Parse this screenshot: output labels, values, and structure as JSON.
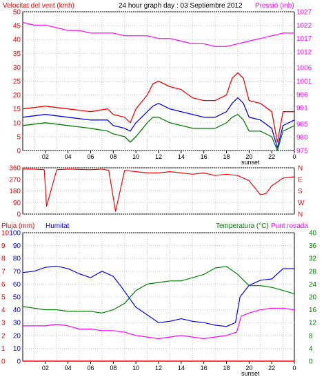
{
  "chart_data": [
    {
      "type": "line",
      "title": "24 hour graph day : 03 Septiembre 2012",
      "ylabel_left": "Velocitat del vent (kmh)",
      "ylabel_right": "Pressió (mb)",
      "xlabel": "",
      "sunset_label": "sunset",
      "x_ticks": [
        "02",
        "04",
        "06",
        "08",
        "10",
        "12",
        "14",
        "16",
        "18",
        "20",
        "22",
        "0"
      ],
      "ylim": [
        0,
        50
      ],
      "y_ticks": [
        0,
        5,
        10,
        15,
        20,
        25,
        30,
        35,
        40,
        45,
        50
      ],
      "y2lim": [
        975,
        1027
      ],
      "y2_ticks": [
        975,
        980,
        985,
        991,
        996,
        1001,
        1006,
        1012,
        1017,
        1022,
        1027
      ],
      "colors": {
        "gust": "#ff0000",
        "average": "#0000ff",
        "speed": "#008000",
        "pressure": "#ff00ff",
        "axis_left": "#ff0000",
        "axis_right": "#ff00ff"
      },
      "series": [
        {
          "name": "",
          "color": "#ff0000",
          "x": [
            0,
            2,
            4,
            6,
            7.5,
            8,
            9,
            9.5,
            10,
            11,
            11.5,
            12,
            13,
            14,
            15,
            16,
            17,
            18,
            18.5,
            19,
            19.5,
            20,
            21,
            22,
            22.5,
            23,
            24
          ],
          "values": [
            15,
            16,
            15,
            14,
            15,
            13,
            12,
            10,
            15,
            20,
            24,
            25,
            23,
            22,
            19,
            18,
            18,
            20,
            26,
            28,
            26,
            18,
            17,
            14,
            3,
            14,
            14
          ]
        },
        {
          "name": "",
          "color": "#0000ff",
          "x": [
            0,
            2,
            4,
            6,
            7.5,
            8,
            9,
            9.5,
            10,
            11,
            11.5,
            12,
            13,
            14,
            15,
            16,
            17,
            18,
            18.5,
            19,
            19.5,
            20,
            21,
            22,
            22.5,
            23,
            24
          ],
          "values": [
            12,
            13,
            12,
            11,
            11,
            9,
            8,
            7,
            10,
            14,
            16,
            17,
            15,
            14,
            13,
            12,
            12,
            14,
            17,
            19,
            17,
            12,
            11,
            8,
            1,
            9,
            11
          ]
        },
        {
          "name": "",
          "color": "#008000",
          "x": [
            0,
            2,
            4,
            6,
            7.5,
            8,
            9,
            9.5,
            10,
            11,
            11.5,
            12,
            13,
            14,
            15,
            16,
            17,
            18,
            18.5,
            19,
            19.5,
            20,
            21,
            22,
            22.5,
            23,
            24
          ],
          "values": [
            9,
            10,
            9,
            8,
            7,
            6,
            5,
            3,
            5,
            10,
            12,
            12,
            10,
            9,
            8,
            8,
            8,
            10,
            12,
            13,
            11,
            7,
            7,
            5,
            0,
            7,
            9
          ]
        },
        {
          "name": "",
          "color": "#ff00ff",
          "axis": "right",
          "x": [
            0,
            1,
            2,
            3,
            4,
            5,
            6,
            7,
            8,
            9,
            10,
            11,
            12,
            13,
            14,
            15,
            16,
            17,
            18,
            19,
            20,
            21,
            22,
            23,
            24
          ],
          "values": [
            1023,
            1022,
            1022,
            1021,
            1020,
            1020,
            1019,
            1019,
            1019,
            1018,
            1018,
            1018,
            1017,
            1017,
            1016,
            1015,
            1015,
            1014,
            1014,
            1015,
            1016,
            1017,
            1018,
            1019,
            1019
          ]
        }
      ]
    },
    {
      "type": "line",
      "title": "",
      "ylabel_left": "",
      "ylim": [
        0,
        360
      ],
      "y_ticks": [
        0,
        90,
        180,
        270,
        360
      ],
      "y2_ticks": [
        "N",
        "W",
        "S",
        "E",
        "N"
      ],
      "series": [
        {
          "name": "",
          "color": "#ff0000",
          "x": [
            0,
            1,
            1.9,
            2.1,
            3,
            4,
            6,
            7,
            7.6,
            8.2,
            9,
            10,
            11,
            12,
            13,
            14,
            15,
            16,
            17,
            18,
            19,
            20,
            21,
            21.5,
            22,
            23,
            24
          ],
          "values": [
            350,
            350,
            345,
            60,
            345,
            350,
            345,
            350,
            340,
            20,
            340,
            330,
            320,
            320,
            330,
            320,
            310,
            320,
            300,
            310,
            300,
            260,
            150,
            160,
            220,
            280,
            290
          ]
        }
      ]
    },
    {
      "type": "line",
      "title": "",
      "ylabel_left": "Pluja (mm)",
      "ylabel_mid": "Humitat",
      "ylabel_right": "Temperatura (°C)",
      "ylabel_right2": "Punt rosada",
      "sunset_label": "sunset",
      "x_ticks": [
        "02",
        "04",
        "06",
        "08",
        "10",
        "12",
        "14",
        "16",
        "18",
        "20",
        "22",
        "0"
      ],
      "ylim_humidity": [
        0,
        100
      ],
      "y_ticks_rain": [
        0,
        1,
        2,
        3,
        4,
        5,
        6,
        7,
        8,
        9,
        10
      ],
      "y_ticks_humidity": [
        0,
        10,
        20,
        30,
        40,
        50,
        60,
        70,
        80,
        90,
        100
      ],
      "ylim_temp": [
        0,
        40
      ],
      "y2_ticks": [
        0,
        4,
        8,
        12,
        16,
        20,
        24,
        28,
        32,
        36,
        40
      ],
      "series": [
        {
          "name": "Humitat",
          "color": "#0000ff",
          "axis": "humidity",
          "x": [
            0,
            1,
            2,
            3,
            4,
            5,
            6,
            7,
            8,
            8.7,
            9.5,
            10,
            11,
            12,
            13,
            14,
            15,
            16,
            17,
            18,
            18.8,
            19.2,
            20,
            21,
            22,
            23,
            24
          ],
          "values": [
            69,
            70,
            73,
            74,
            72,
            68,
            65,
            70,
            66,
            58,
            48,
            42,
            36,
            30,
            31,
            33,
            31,
            30,
            28,
            27,
            30,
            50,
            59,
            63,
            64,
            72,
            72
          ]
        },
        {
          "name": "Temperatura",
          "color": "#008000",
          "axis": "temp",
          "x": [
            0,
            1,
            2,
            3,
            4,
            5,
            6,
            7,
            8,
            9,
            10,
            11,
            12,
            13,
            14,
            15,
            16,
            17,
            18,
            19,
            20,
            21,
            22,
            23,
            24
          ],
          "values": [
            17,
            16.5,
            16,
            16,
            15.5,
            15.5,
            15.5,
            15,
            16,
            18,
            22,
            24,
            24.5,
            25,
            25,
            26,
            27,
            29,
            29.5,
            27,
            23.5,
            23.5,
            23,
            22,
            21
          ]
        },
        {
          "name": "Punt rosada",
          "color": "#ff00ff",
          "axis": "temp",
          "x": [
            0,
            1,
            2,
            3,
            4,
            5,
            6,
            7,
            8,
            9,
            10,
            11,
            12,
            13,
            14,
            15,
            16,
            17,
            18,
            18.9,
            19.3,
            20,
            21,
            22,
            23,
            24
          ],
          "values": [
            11,
            11,
            11,
            11.5,
            11,
            10,
            10,
            9.5,
            9.5,
            9,
            8,
            7.5,
            7,
            7.5,
            8,
            7.5,
            7,
            7.5,
            8,
            9,
            14,
            15,
            16,
            16.5,
            16.5,
            16
          ]
        },
        {
          "name": "Pluja",
          "color": "#ff0000",
          "axis": "rain",
          "x": [
            0,
            24
          ],
          "values": [
            0,
            0
          ]
        }
      ]
    }
  ]
}
